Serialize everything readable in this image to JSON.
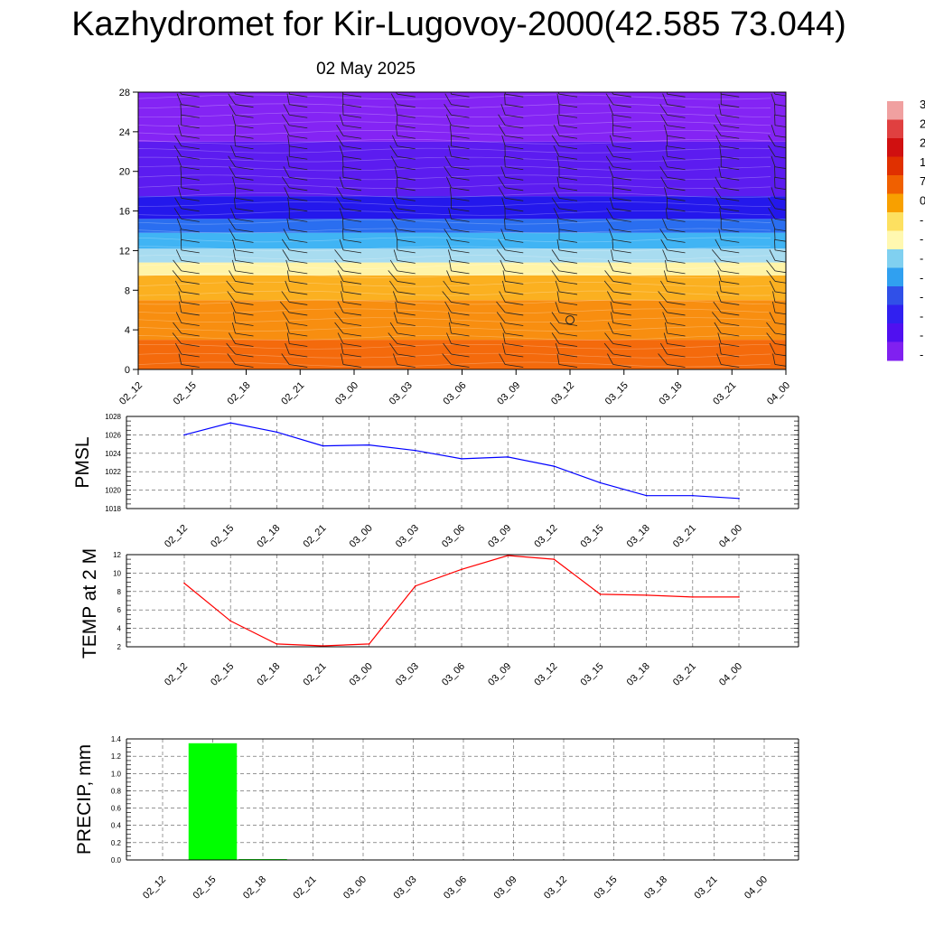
{
  "header": {
    "title": "Kazhydromet for Kir-Lugovoy-2000(42.585 73.044)",
    "subtitle": "02 May 2025"
  },
  "colorbar": {
    "labels": [
      "3",
      "2",
      "2",
      "1",
      "7",
      "0",
      "-",
      "-",
      "-",
      "-",
      "-",
      "-",
      "-",
      "-"
    ],
    "colors": [
      "#f0a0a0",
      "#e04040",
      "#d01010",
      "#e03000",
      "#f06000",
      "#f8a000",
      "#fde060",
      "#fff8b0",
      "#80d0f0",
      "#30a0f0",
      "#3050e8",
      "#3020f0",
      "#5010f0",
      "#8020f0"
    ]
  },
  "chart_data": [
    {
      "type": "heatmap",
      "name": "cross-section",
      "x_categories": [
        "02_12",
        "02_15",
        "02_18",
        "02_21",
        "03_00",
        "03_03",
        "03_06",
        "03_09",
        "03_12",
        "03_15",
        "03_18",
        "03_21",
        "04_00"
      ],
      "y_ticks": [
        0,
        4,
        8,
        12,
        16,
        20,
        24,
        28
      ],
      "ylim": [
        0,
        28
      ],
      "bands": [
        {
          "from": 0,
          "to": 3,
          "color": "#f46a0c"
        },
        {
          "from": 3,
          "to": 7,
          "color": "#f88e10"
        },
        {
          "from": 7,
          "to": 9.5,
          "color": "#fbb020"
        },
        {
          "from": 9.5,
          "to": 10.8,
          "color": "#fff4a8"
        },
        {
          "from": 10.8,
          "to": 12.2,
          "color": "#a8dcf0"
        },
        {
          "from": 12.2,
          "to": 13.8,
          "color": "#40b4f4"
        },
        {
          "from": 13.8,
          "to": 15.2,
          "color": "#2a6ef0"
        },
        {
          "from": 15.2,
          "to": 17.5,
          "color": "#2418ec"
        },
        {
          "from": 17.5,
          "to": 23,
          "color": "#5c1cf0"
        },
        {
          "from": 23,
          "to": 28,
          "color": "#8424f4"
        }
      ]
    },
    {
      "type": "line",
      "name": "pmsl",
      "ylabel": "PMSL",
      "x_categories": [
        "02_12",
        "02_15",
        "02_18",
        "02_21",
        "03_00",
        "03_03",
        "03_06",
        "03_09",
        "03_12",
        "03_15",
        "03_18",
        "03_21",
        "04_00"
      ],
      "values": [
        1026.0,
        1027.3,
        1026.3,
        1024.8,
        1024.9,
        1024.3,
        1023.4,
        1023.6,
        1022.6,
        1020.8,
        1019.4,
        1019.4,
        1019.1
      ],
      "ylim": [
        1018,
        1028
      ],
      "y_ticks": [
        1018,
        1020,
        1022,
        1024,
        1026,
        1028
      ],
      "color": "#0000ff",
      "grid": true
    },
    {
      "type": "line",
      "name": "temp",
      "ylabel": "TEMP at 2 M",
      "x_categories": [
        "02_12",
        "02_15",
        "02_18",
        "02_21",
        "03_00",
        "03_03",
        "03_06",
        "03_09",
        "03_12",
        "03_15",
        "03_18",
        "03_21",
        "04_00"
      ],
      "values": [
        8.9,
        4.8,
        2.3,
        2.1,
        2.3,
        8.6,
        10.4,
        11.9,
        11.5,
        7.7,
        7.6,
        7.4,
        7.4
      ],
      "ylim": [
        2,
        12
      ],
      "y_ticks": [
        2,
        4,
        6,
        8,
        10,
        12
      ],
      "color": "#ff0000",
      "grid": true
    },
    {
      "type": "bar",
      "name": "precip",
      "ylabel": "PRECIP, mm",
      "x_categories": [
        "02_12",
        "02_15",
        "02_18",
        "02_21",
        "03_00",
        "03_03",
        "03_06",
        "03_09",
        "03_12",
        "03_15",
        "03_18",
        "03_21",
        "04_00"
      ],
      "values": [
        0,
        1.35,
        0.01,
        0,
        0,
        0,
        0,
        0,
        0,
        0,
        0,
        0,
        0
      ],
      "ylim": [
        0,
        1.4
      ],
      "y_ticks": [
        0.0,
        0.2,
        0.4,
        0.6,
        0.8,
        1.0,
        1.2,
        1.4
      ],
      "color": "#00ff00",
      "grid": true
    }
  ]
}
